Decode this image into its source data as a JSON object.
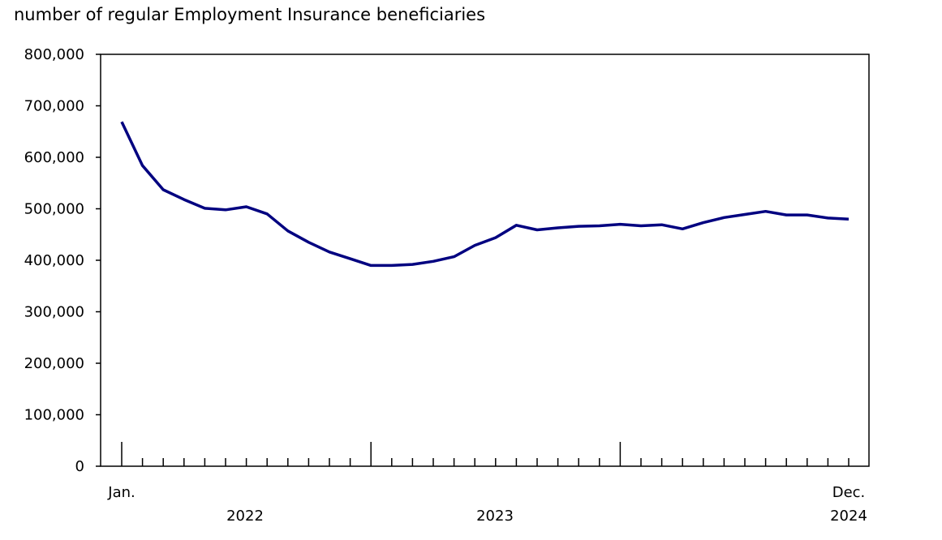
{
  "chart_data": {
    "type": "line",
    "title": "number of regular Employment Insurance beneficiaries",
    "xlabel": "",
    "ylabel": "",
    "ylim": [
      0,
      800000
    ],
    "yticks": [
      "0",
      "100,000",
      "200,000",
      "300,000",
      "400,000",
      "500,000",
      "600,000",
      "700,000",
      "800,000"
    ],
    "ytick_values": [
      0,
      100000,
      200000,
      300000,
      400000,
      500000,
      600000,
      700000,
      800000
    ],
    "x_start_label": "Jan.",
    "x_end_label": "Dec.",
    "year_labels": [
      "2022",
      "2023",
      "2024"
    ],
    "x": [
      "2022-01",
      "2022-02",
      "2022-03",
      "2022-04",
      "2022-05",
      "2022-06",
      "2022-07",
      "2022-08",
      "2022-09",
      "2022-10",
      "2022-11",
      "2022-12",
      "2023-01",
      "2023-02",
      "2023-03",
      "2023-04",
      "2023-05",
      "2023-06",
      "2023-07",
      "2023-08",
      "2023-09",
      "2023-10",
      "2023-11",
      "2023-12",
      "2024-01",
      "2024-02",
      "2024-03",
      "2024-04",
      "2024-05",
      "2024-06",
      "2024-07",
      "2024-08",
      "2024-09",
      "2024-10",
      "2024-11",
      "2024-12"
    ],
    "values": [
      669000,
      584000,
      537000,
      518000,
      501000,
      498000,
      504000,
      490000,
      457000,
      435000,
      416000,
      403000,
      390000,
      390000,
      392000,
      398000,
      407000,
      429000,
      444000,
      468000,
      459000,
      463000,
      466000,
      467000,
      470000,
      467000,
      469000,
      461000,
      473000,
      483000,
      489000,
      495000,
      488000,
      488000,
      482000,
      480000
    ],
    "grid": false,
    "legend": "none",
    "line_color": "#000080"
  }
}
